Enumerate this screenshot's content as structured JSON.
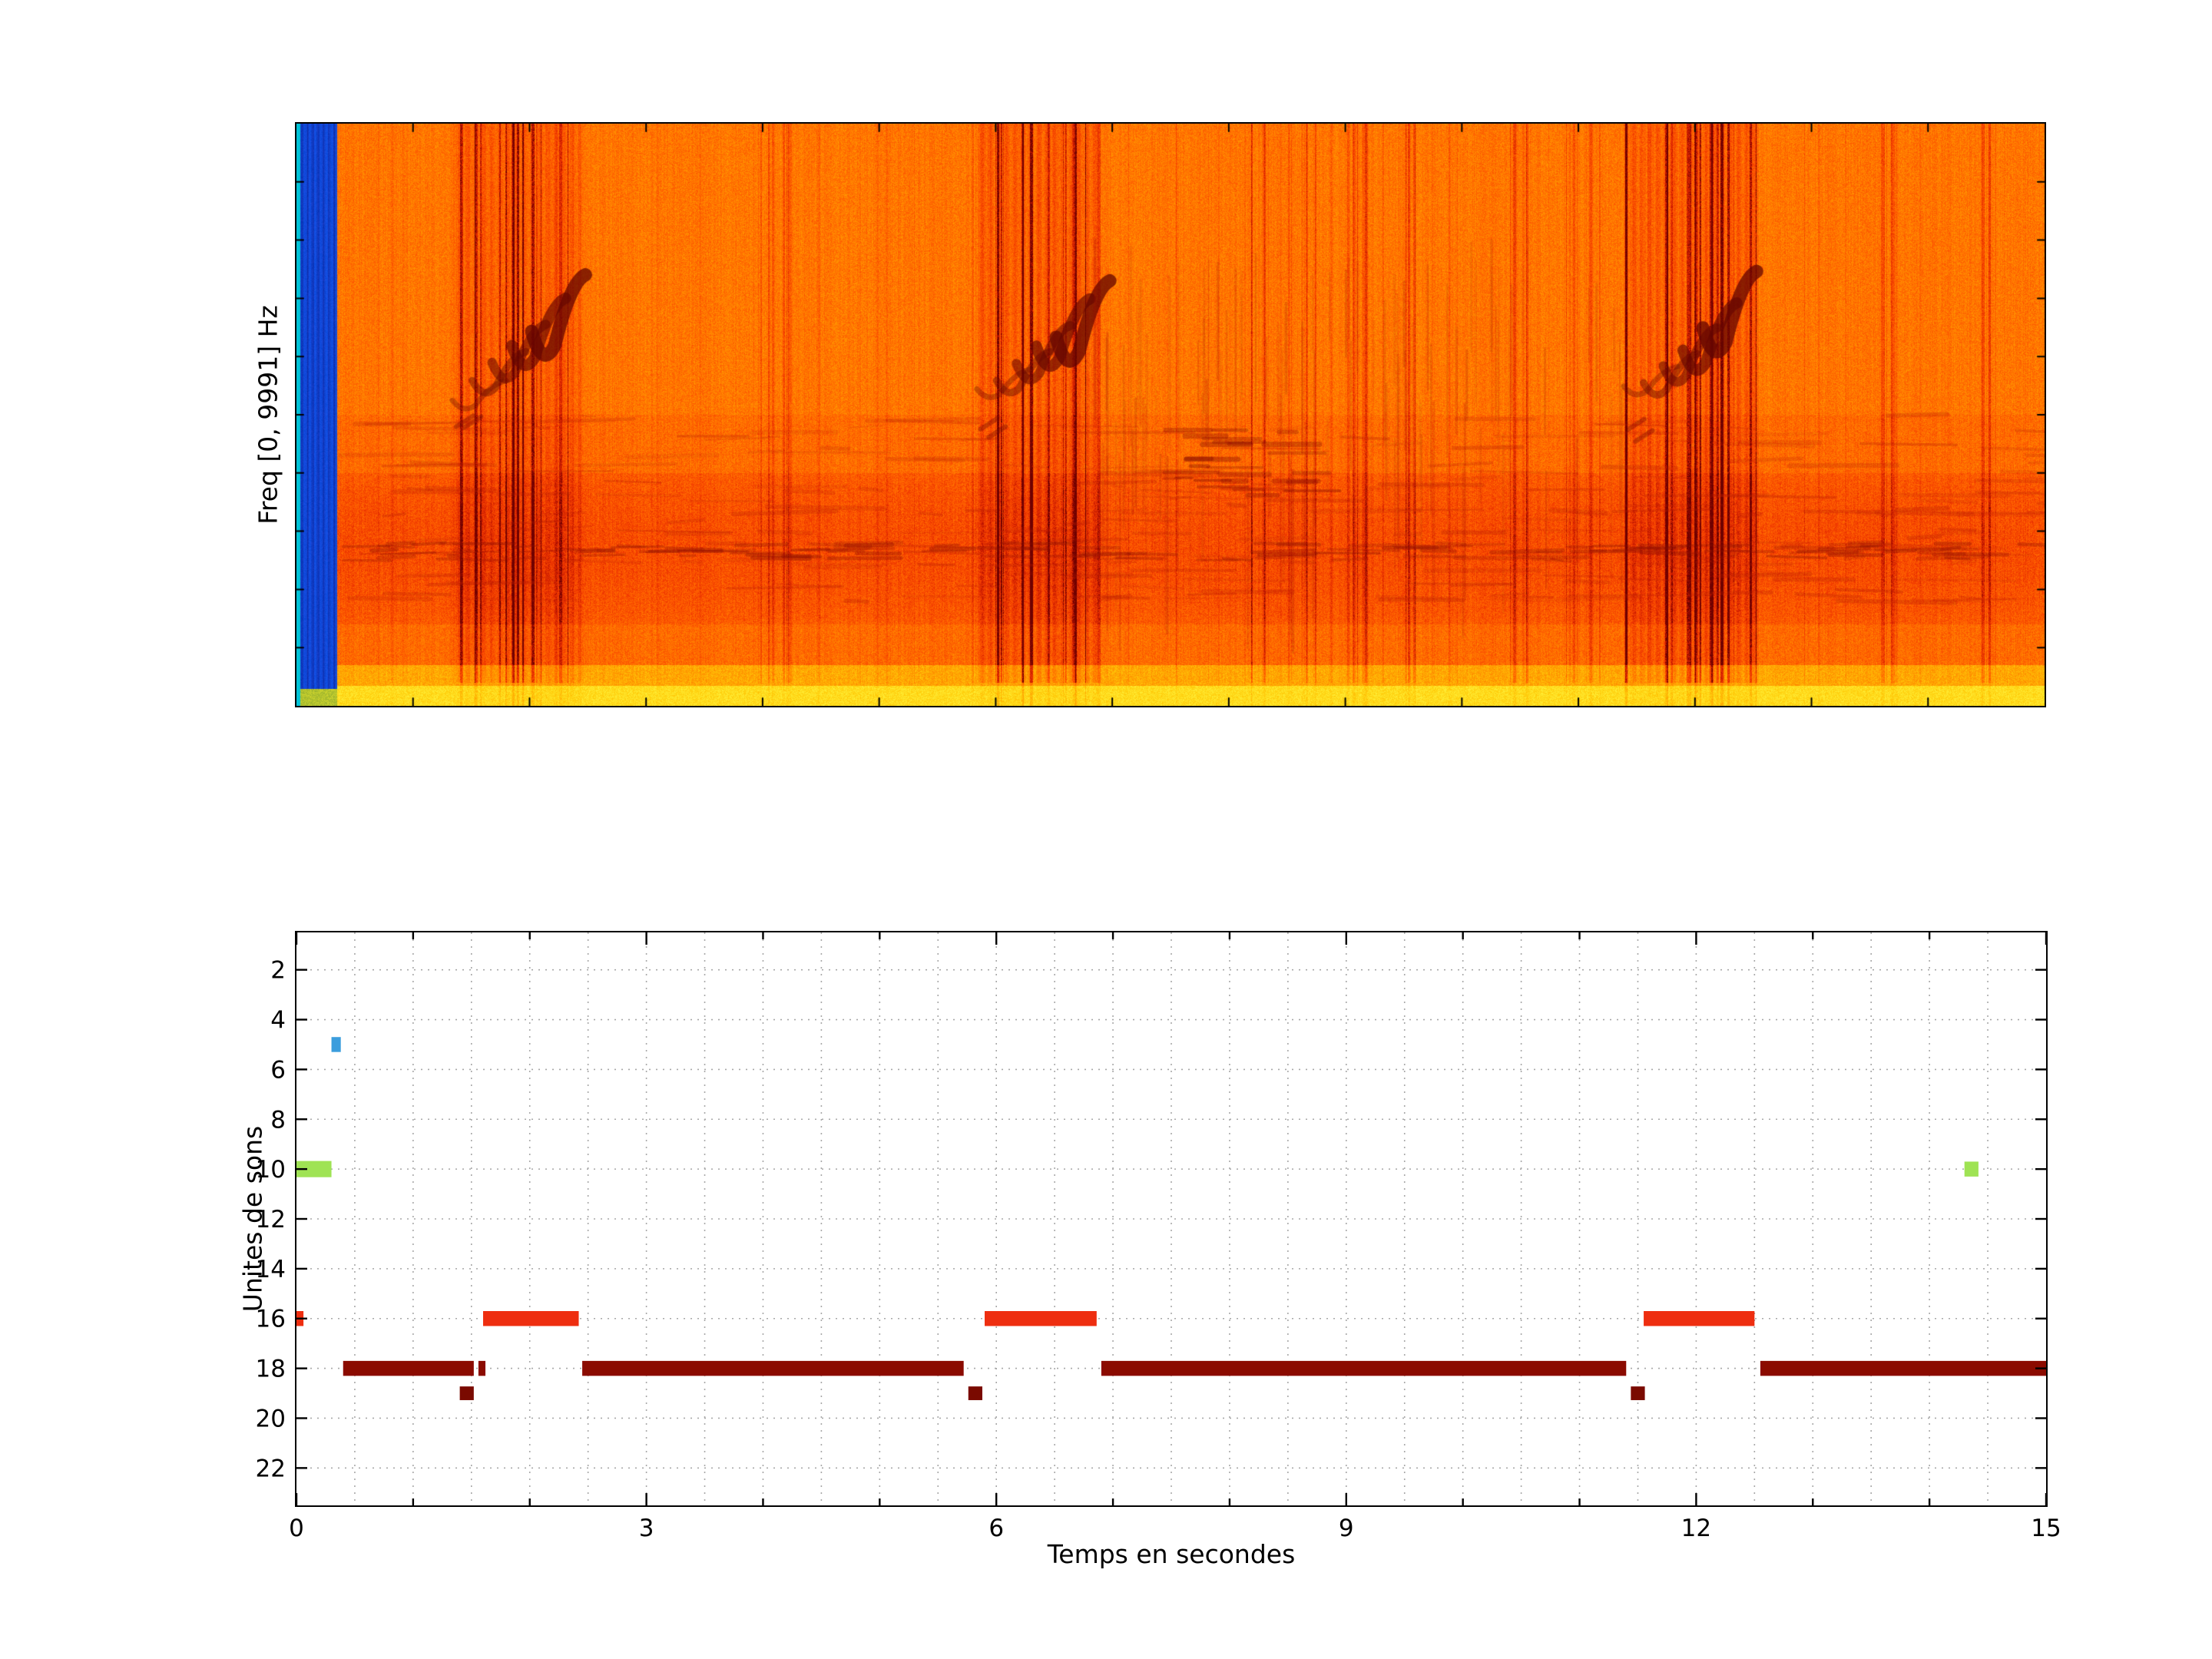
{
  "figure": {
    "background": "#ffffff"
  },
  "chart_data": [
    {
      "type": "heatmap",
      "name": "spectrogram",
      "ylabel": "Freq [0, 9991] Hz",
      "xlim": [
        0,
        15
      ],
      "freq_range_hz": [
        0,
        9991
      ],
      "colormap": "jet-orange (high energy), blue = silence",
      "silence_blue_band": {
        "start": 0.0,
        "end": 0.35
      },
      "events": [
        {
          "start": 1.35,
          "end": 2.45
        },
        {
          "start": 5.85,
          "end": 6.9
        },
        {
          "start": 11.4,
          "end": 12.55
        }
      ]
    },
    {
      "type": "bar",
      "name": "sound-units-timeline",
      "xlabel": "Temps en secondes",
      "ylabel": "Unites de sons",
      "xlim": [
        0,
        15
      ],
      "ylim": [
        0.5,
        23.5
      ],
      "y_axis_reversed": true,
      "xticks": [
        0,
        3,
        6,
        9,
        12,
        15
      ],
      "yticks": [
        2,
        4,
        6,
        8,
        10,
        12,
        14,
        16,
        18,
        20,
        22
      ],
      "grid": {
        "style": "dotted",
        "x_step": 0.5,
        "color": "#a8a8a8"
      },
      "segments": [
        {
          "unit": 5,
          "start": 0.3,
          "end": 0.38,
          "color": "#3b9ddd",
          "height": 0.6
        },
        {
          "unit": 10,
          "start": 0.0,
          "end": 0.3,
          "color": "#9fe354",
          "height": 0.65
        },
        {
          "unit": 10,
          "start": 14.3,
          "end": 14.42,
          "color": "#9fe354",
          "height": 0.6
        },
        {
          "unit": 16,
          "start": 0.0,
          "end": 0.06,
          "color": "#ee2e10",
          "height": 0.6
        },
        {
          "unit": 16,
          "start": 1.6,
          "end": 2.42,
          "color": "#ee2e10",
          "height": 0.6
        },
        {
          "unit": 16,
          "start": 5.9,
          "end": 6.86,
          "color": "#ee2e10",
          "height": 0.6
        },
        {
          "unit": 16,
          "start": 11.55,
          "end": 12.5,
          "color": "#ee2e10",
          "height": 0.6
        },
        {
          "unit": 18,
          "start": 0.4,
          "end": 1.52,
          "color": "#8b0b00",
          "height": 0.6
        },
        {
          "unit": 18,
          "start": 1.56,
          "end": 1.62,
          "color": "#8b0b00",
          "height": 0.6
        },
        {
          "unit": 18,
          "start": 2.45,
          "end": 5.72,
          "color": "#8b0b00",
          "height": 0.6
        },
        {
          "unit": 18,
          "start": 6.9,
          "end": 11.4,
          "color": "#8b0b00",
          "height": 0.6
        },
        {
          "unit": 18,
          "start": 12.55,
          "end": 15.0,
          "color": "#8b0b00",
          "height": 0.6
        },
        {
          "unit": 19,
          "start": 1.4,
          "end": 1.52,
          "color": "#7a0a00",
          "height": 0.55
        },
        {
          "unit": 19,
          "start": 5.76,
          "end": 5.88,
          "color": "#7a0a00",
          "height": 0.55
        },
        {
          "unit": 19,
          "start": 11.44,
          "end": 11.56,
          "color": "#7a0a00",
          "height": 0.55
        }
      ]
    }
  ]
}
